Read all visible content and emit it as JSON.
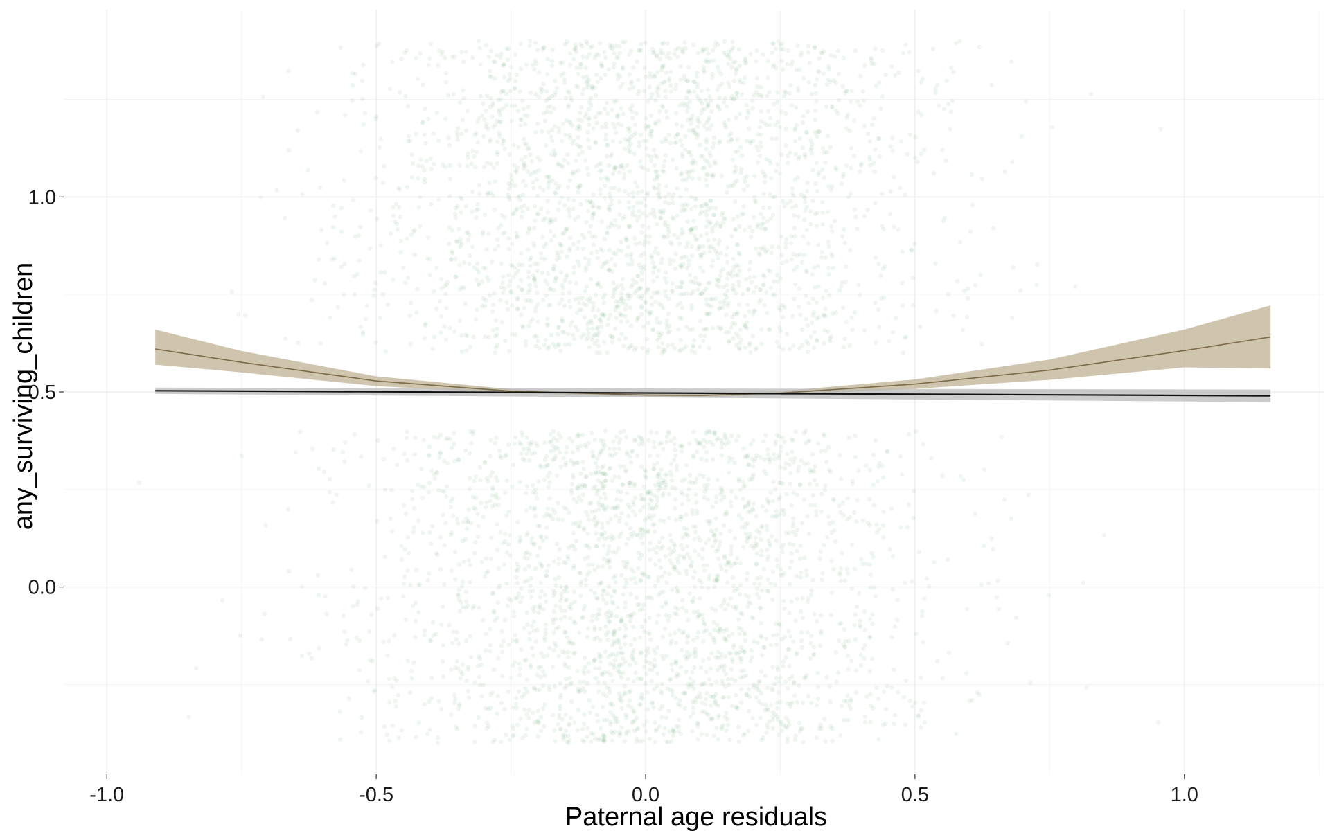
{
  "chart_data": {
    "type": "scatter",
    "title": "",
    "xlabel": "Paternal age residuals",
    "ylabel": "any_surviving_children",
    "xlim": [
      -1.08,
      1.26
    ],
    "ylim": [
      -0.48,
      1.48
    ],
    "x_ticks": [
      {
        "value": -1.0,
        "label": "-1.0"
      },
      {
        "value": -0.5,
        "label": "-0.5"
      },
      {
        "value": 0.0,
        "label": "0.0"
      },
      {
        "value": 0.5,
        "label": "0.5"
      },
      {
        "value": 1.0,
        "label": "1.0"
      }
    ],
    "y_ticks": [
      {
        "value": 0.0,
        "label": "0.0"
      },
      {
        "value": 0.5,
        "label": "0.5"
      },
      {
        "value": 1.0,
        "label": "1.0"
      }
    ],
    "grid": true,
    "legend": "none",
    "scatter": {
      "description_levels": [
        0,
        1
      ],
      "jitter_height": 0.4,
      "x_mean": 0.0,
      "x_sd": 0.25,
      "color": "#2e8b3e",
      "opacity": 0.08
    },
    "series": [
      {
        "type": "line",
        "color": "#7a6a45",
        "band_color": "#bcad8e",
        "x": [
          -0.91,
          -0.75,
          -0.5,
          -0.25,
          0.0,
          0.1,
          0.25,
          0.5,
          0.75,
          1.0,
          1.16
        ],
        "y": [
          0.61,
          0.576,
          0.528,
          0.502,
          0.492,
          0.491,
          0.497,
          0.52,
          0.556,
          0.606,
          0.641
        ],
        "lower": [
          0.57,
          0.55,
          0.515,
          0.497,
          0.488,
          0.487,
          0.492,
          0.508,
          0.531,
          0.563,
          0.56
        ],
        "upper": [
          0.66,
          0.605,
          0.54,
          0.507,
          0.496,
          0.495,
          0.502,
          0.532,
          0.583,
          0.66,
          0.722
        ]
      },
      {
        "type": "line",
        "color": "#111111",
        "band_color": "#b8b8b8",
        "x": [
          -0.91,
          1.16
        ],
        "y": [
          0.503,
          0.49
        ],
        "lower": [
          0.495,
          0.474
        ],
        "upper": [
          0.511,
          0.506
        ]
      }
    ]
  }
}
